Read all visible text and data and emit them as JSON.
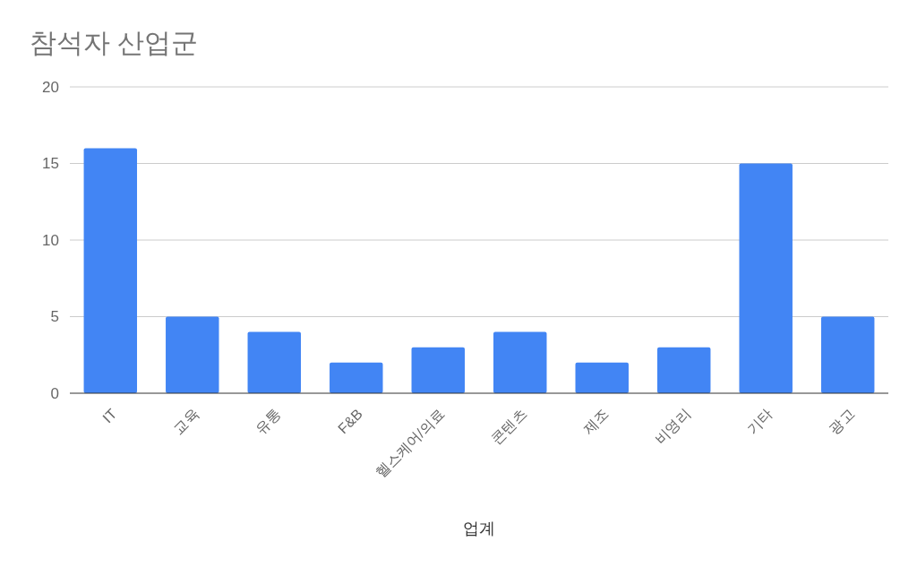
{
  "chart_data": {
    "type": "bar",
    "title": "참석자 산업군",
    "xlabel": "업계",
    "categories": [
      "IT",
      "교육",
      "유통",
      "F&B",
      "헬스케어/의료",
      "콘텐츠",
      "제조",
      "비영리",
      "기타",
      "광고"
    ],
    "values": [
      16,
      5,
      4,
      2,
      3,
      4,
      2,
      3,
      15,
      5
    ],
    "color": "#4285f4",
    "ylim": [
      0,
      20
    ],
    "yticks": [
      0,
      5,
      10,
      15,
      20
    ],
    "grid": "y"
  }
}
